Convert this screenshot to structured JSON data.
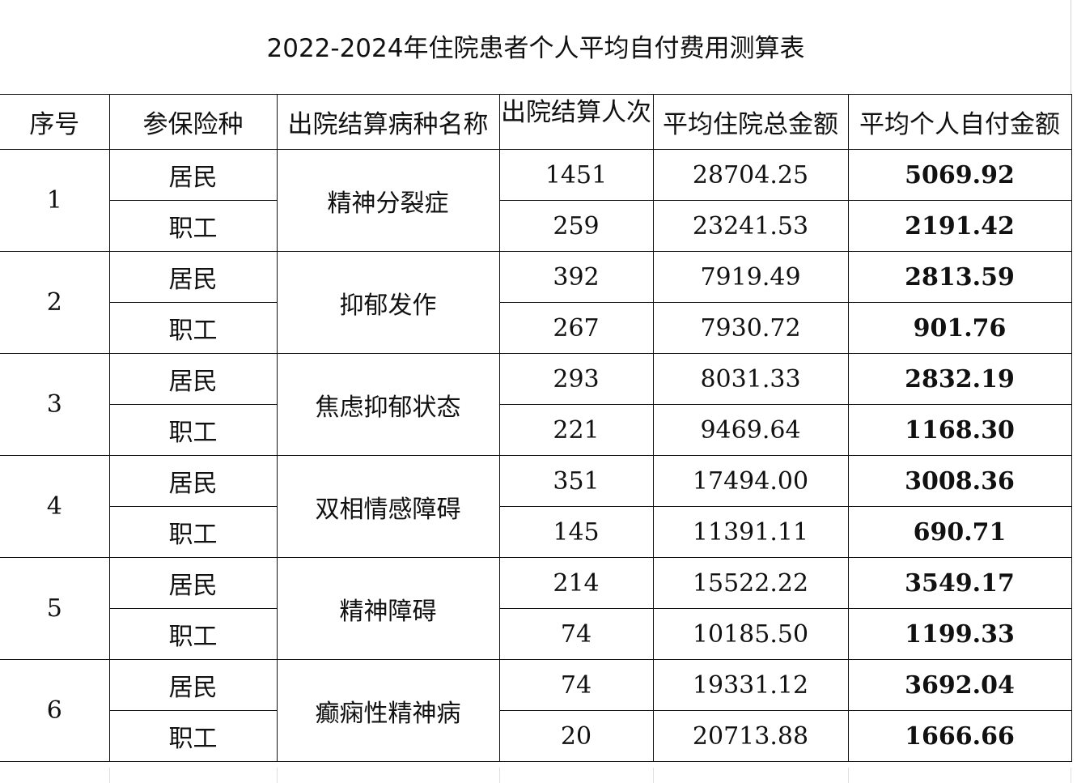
{
  "title": "2022-2024年住院患者个人平均自付费用测算表",
  "headers": {
    "seq": "序号",
    "insurance_type": "参保险种",
    "disease_name": "出院结算病种名称",
    "settlement_count": "出院结算人次",
    "avg_total": "平均住院总金额",
    "avg_self_pay": "平均个人自付金额"
  },
  "groups": [
    {
      "seq": "1",
      "disease": "精神分裂症",
      "rows": [
        {
          "type": "居民",
          "count": "1451",
          "avg_total": "28704.25",
          "avg_self_pay": "5069.92"
        },
        {
          "type": "职工",
          "count": "259",
          "avg_total": "23241.53",
          "avg_self_pay": "2191.42"
        }
      ]
    },
    {
      "seq": "2",
      "disease": "抑郁发作",
      "rows": [
        {
          "type": "居民",
          "count": "392",
          "avg_total": "7919.49",
          "avg_self_pay": "2813.59"
        },
        {
          "type": "职工",
          "count": "267",
          "avg_total": "7930.72",
          "avg_self_pay": "901.76"
        }
      ]
    },
    {
      "seq": "3",
      "disease": "焦虑抑郁状态",
      "rows": [
        {
          "type": "居民",
          "count": "293",
          "avg_total": "8031.33",
          "avg_self_pay": "2832.19"
        },
        {
          "type": "职工",
          "count": "221",
          "avg_total": "9469.64",
          "avg_self_pay": "1168.30"
        }
      ]
    },
    {
      "seq": "4",
      "disease": "双相情感障碍",
      "rows": [
        {
          "type": "居民",
          "count": "351",
          "avg_total": "17494.00",
          "avg_self_pay": "3008.36"
        },
        {
          "type": "职工",
          "count": "145",
          "avg_total": "11391.11",
          "avg_self_pay": "690.71"
        }
      ]
    },
    {
      "seq": "5",
      "disease": "精神障碍",
      "rows": [
        {
          "type": "居民",
          "count": "214",
          "avg_total": "15522.22",
          "avg_self_pay": "3549.17"
        },
        {
          "type": "职工",
          "count": "74",
          "avg_total": "10185.50",
          "avg_self_pay": "1199.33"
        }
      ]
    },
    {
      "seq": "6",
      "disease": "癫痫性精神病",
      "rows": [
        {
          "type": "居民",
          "count": "74",
          "avg_total": "19331.12",
          "avg_self_pay": "3692.04"
        },
        {
          "type": "职工",
          "count": "20",
          "avg_total": "20713.88",
          "avg_self_pay": "1666.66"
        }
      ]
    }
  ]
}
